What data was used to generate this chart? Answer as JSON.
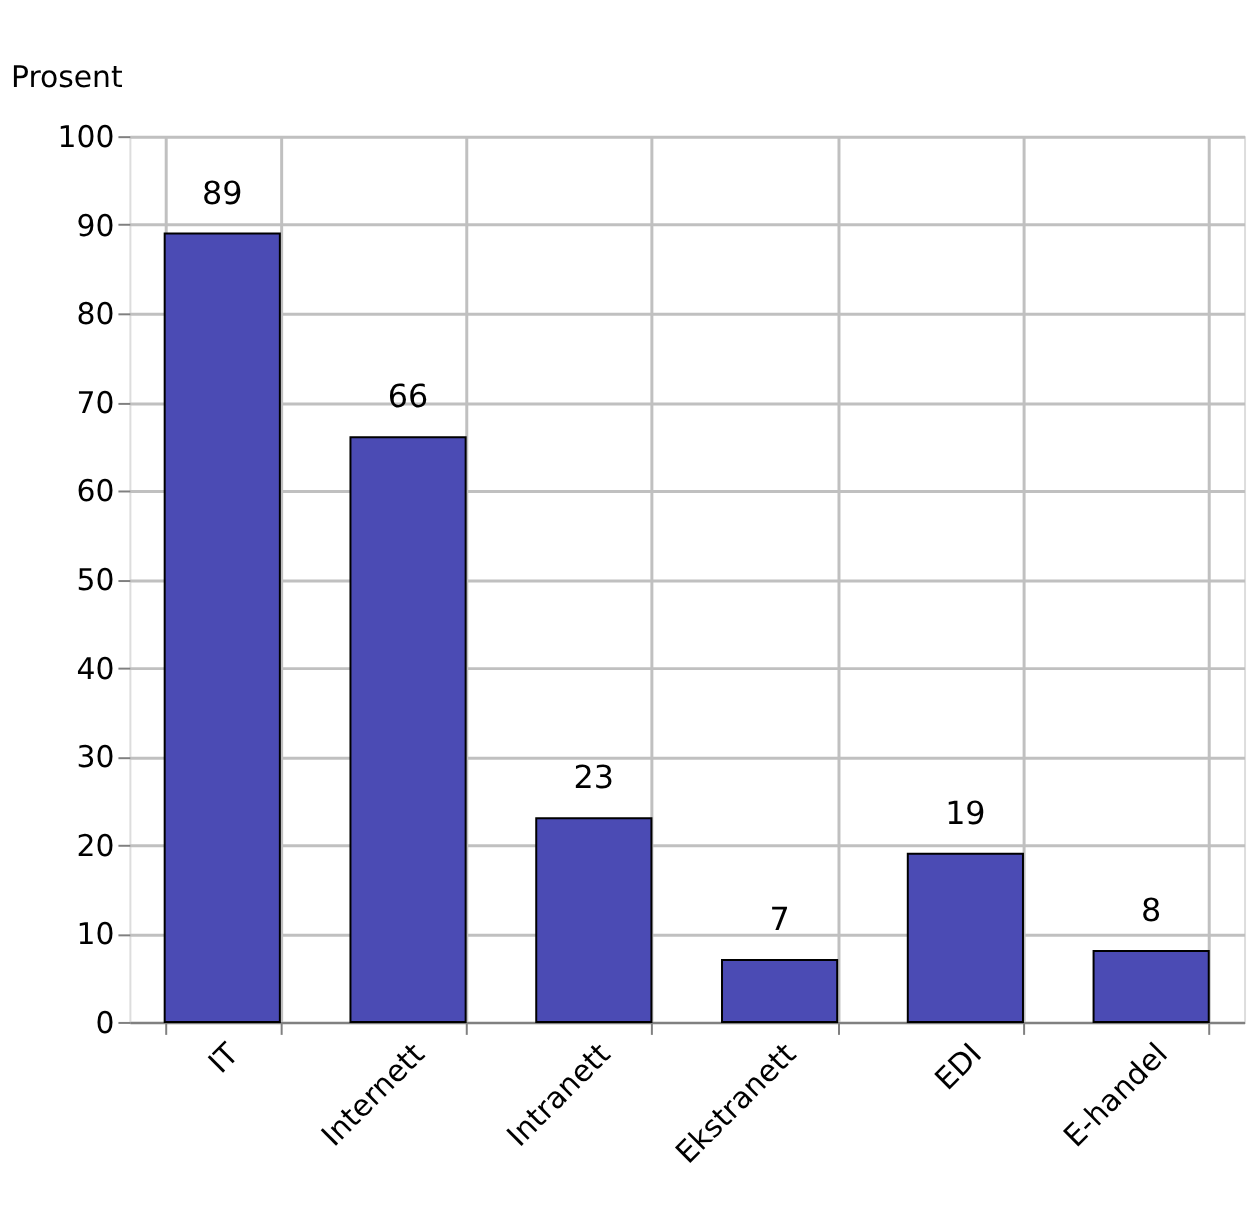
{
  "chart_data": {
    "type": "bar",
    "ylabel": "Prosent",
    "categories": [
      "IT",
      "Internett",
      "Intranett",
      "Ekstranett",
      "EDI",
      "E-handel"
    ],
    "values": [
      89,
      66,
      23,
      7,
      19,
      8
    ],
    "color": "#4b4bb4",
    "ylim": [
      0,
      100
    ],
    "yticks": [
      0,
      10,
      20,
      30,
      40,
      50,
      60,
      70,
      80,
      90,
      100
    ],
    "grid": true,
    "data_labels": true
  }
}
